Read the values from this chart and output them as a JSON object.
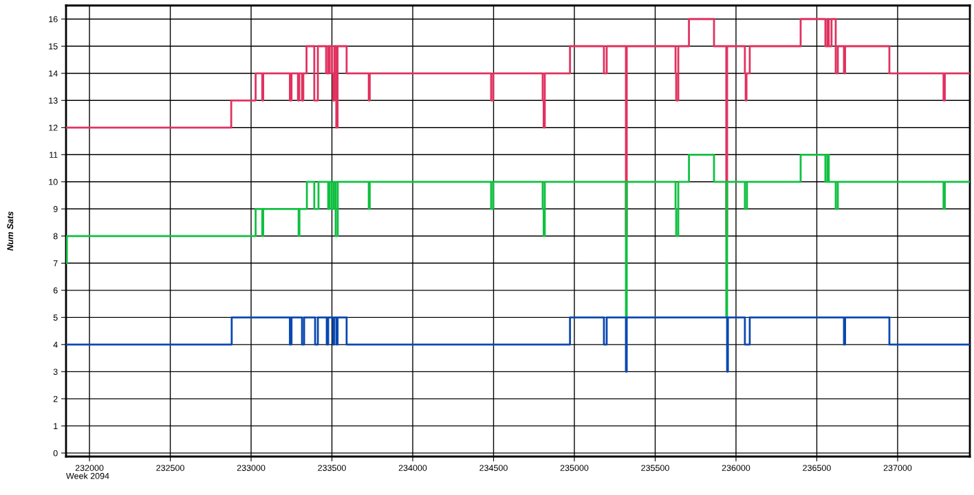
{
  "chart_data": {
    "type": "step",
    "xlabel": "Week 2094",
    "ylabel": "Num Sats",
    "xlim": [
      231855,
      237447
    ],
    "xticks": [
      232000,
      232500,
      233000,
      233500,
      234000,
      234500,
      235000,
      235500,
      236000,
      236500,
      237000
    ],
    "ylim": [
      -0.13,
      16.5
    ],
    "yticks": [
      0,
      1,
      2,
      3,
      4,
      5,
      6,
      7,
      8,
      9,
      10,
      11,
      12,
      13,
      14,
      15,
      16
    ],
    "grid": true,
    "legend": false,
    "marker": "none",
    "line_style": "solid",
    "series": [
      {
        "color": "#e0325f",
        "x": [
          231855,
          232877,
          233028,
          233069,
          233075,
          233240,
          233250,
          233290,
          233298,
          233315,
          233323,
          233343,
          233391,
          233413,
          233464,
          233477,
          233481,
          233486,
          233500,
          233507,
          233515,
          233527,
          233535,
          233591,
          233728,
          233734,
          234485,
          234498,
          234804,
          234810,
          234817,
          234973,
          235183,
          235200,
          235319,
          235324,
          235626,
          235630,
          235643,
          235709,
          235864,
          235940,
          235945,
          236055,
          236060,
          236065,
          236085,
          236400,
          236553,
          236566,
          236574,
          236591,
          236617,
          236630,
          236668,
          236675,
          236949,
          237284,
          237292,
          237447
        ],
        "values": [
          12,
          13,
          14,
          13,
          14,
          13,
          14,
          13,
          14,
          13,
          14,
          15,
          13,
          15,
          14,
          15,
          14,
          15,
          14,
          13,
          15,
          12,
          15,
          14,
          13,
          14,
          13,
          14,
          13,
          12,
          14,
          15,
          14,
          15,
          8,
          15,
          14,
          13,
          15,
          16,
          15,
          8,
          15,
          14,
          13,
          14,
          15,
          16,
          15,
          16,
          15,
          16,
          14,
          15,
          14,
          15,
          14,
          13,
          14,
          14
        ]
      },
      {
        "color": "#10c040",
        "x": [
          231855,
          231860,
          233028,
          233069,
          233075,
          233294,
          233299,
          233345,
          233391,
          233417,
          233477,
          233485,
          233498,
          233511,
          233523,
          233536,
          233728,
          233734,
          234485,
          234498,
          234804,
          234810,
          234817,
          235319,
          235324,
          235626,
          235630,
          235643,
          235709,
          235864,
          235940,
          235945,
          236055,
          236068,
          236400,
          236553,
          236566,
          236574,
          236591,
          236617,
          236630,
          237284,
          237292,
          237447
        ],
        "values": [
          7,
          8,
          9,
          8,
          9,
          8,
          9,
          10,
          9,
          10,
          9,
          10,
          9,
          10,
          8,
          10,
          9,
          10,
          9,
          10,
          9,
          8,
          10,
          5,
          10,
          9,
          8,
          10,
          11,
          10,
          5,
          10,
          9,
          10,
          11,
          10,
          11,
          10,
          10,
          9,
          10,
          9,
          10,
          10
        ]
      },
      {
        "color": "#0a48b0",
        "x": [
          231855,
          232880,
          233240,
          233250,
          233315,
          233328,
          233396,
          233413,
          233468,
          233477,
          233507,
          233515,
          233529,
          233535,
          233591,
          234973,
          235183,
          235200,
          235319,
          235324,
          235945,
          235950,
          236055,
          236085,
          236668,
          236675,
          236949,
          237447
        ],
        "values": [
          4,
          5,
          4,
          5,
          4,
          5,
          4,
          5,
          4,
          5,
          4,
          5,
          4,
          5,
          4,
          5,
          4,
          5,
          3,
          5,
          3,
          5,
          4,
          5,
          4,
          5,
          4,
          4
        ]
      }
    ]
  }
}
